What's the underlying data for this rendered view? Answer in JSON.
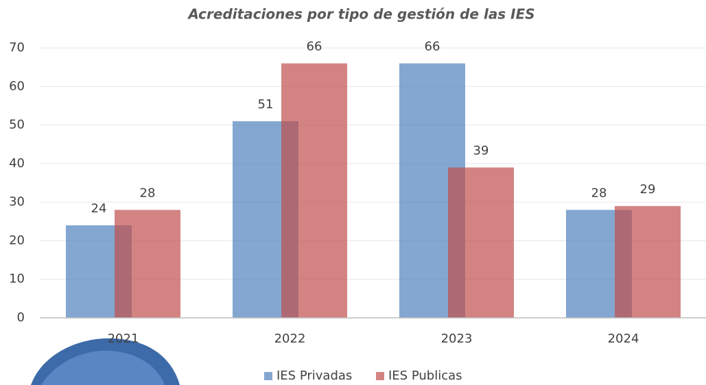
{
  "chart_data": {
    "type": "bar",
    "title": "Acreditaciones por tipo de gestión de las IES",
    "categories": [
      "2021",
      "2022",
      "2023",
      "2024"
    ],
    "series": [
      {
        "name": "IES Privadas",
        "color": "#4f81bd",
        "values": [
          24,
          51,
          66,
          28
        ]
      },
      {
        "name": "IES Publicas",
        "color": "#c0504d",
        "values": [
          28,
          66,
          39,
          29
        ]
      }
    ],
    "ylim": [
      0,
      70
    ],
    "yticks": [
      0,
      10,
      20,
      30,
      40,
      50,
      60,
      70
    ],
    "grid": true,
    "legend": "bottom"
  }
}
